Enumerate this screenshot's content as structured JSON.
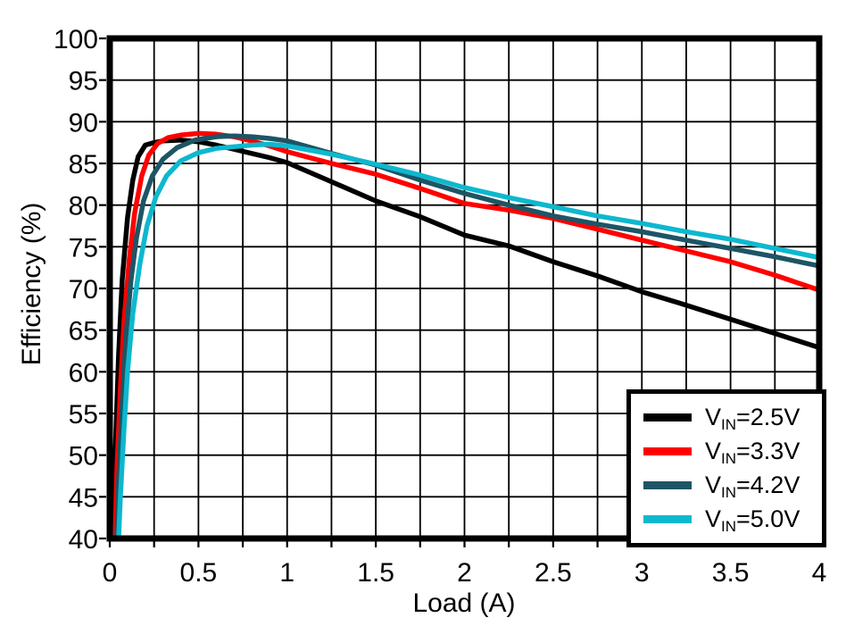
{
  "chart_data": {
    "type": "line",
    "title": "",
    "xlabel": "Load (A)",
    "ylabel": "Efficiency (%)",
    "xlim": [
      0,
      4
    ],
    "ylim": [
      40,
      100
    ],
    "x_tick_values": [
      0,
      0.5,
      1,
      1.5,
      2,
      2.5,
      3,
      3.5,
      4
    ],
    "x_tick_labels": [
      "0",
      "0.5",
      "1",
      "1.5",
      "2",
      "2.5",
      "3",
      "3.5",
      "4"
    ],
    "y_tick_values": [
      40,
      45,
      50,
      55,
      60,
      65,
      70,
      75,
      80,
      85,
      90,
      95,
      100
    ],
    "y_tick_labels": [
      "40",
      "45",
      "50",
      "55",
      "60",
      "65",
      "70",
      "75",
      "80",
      "85",
      "90",
      "95",
      "100"
    ],
    "x_grid_step": 0.25,
    "y_grid_step": 5,
    "grid": true,
    "legend_position": "bottom-right",
    "series": [
      {
        "name": "VIN=2.5V",
        "legend": {
          "pre": "V",
          "sub": "IN",
          "post": "=2.5V"
        },
        "color": "#000000",
        "points": [
          [
            0.02,
            40
          ],
          [
            0.03,
            50
          ],
          [
            0.05,
            62
          ],
          [
            0.07,
            71
          ],
          [
            0.1,
            78.5
          ],
          [
            0.13,
            83
          ],
          [
            0.16,
            85.8
          ],
          [
            0.2,
            87.2
          ],
          [
            0.25,
            87.5
          ],
          [
            0.3,
            87.7
          ],
          [
            0.4,
            87.8
          ],
          [
            0.5,
            87.6
          ],
          [
            0.6,
            87.2
          ],
          [
            0.7,
            86.7
          ],
          [
            0.8,
            86.2
          ],
          [
            0.9,
            85.7
          ],
          [
            1.0,
            85.1
          ],
          [
            1.25,
            82.8
          ],
          [
            1.5,
            80.5
          ],
          [
            1.75,
            78.6
          ],
          [
            2.0,
            76.4
          ],
          [
            2.25,
            75.1
          ],
          [
            2.5,
            73.2
          ],
          [
            2.75,
            71.5
          ],
          [
            3.0,
            69.6
          ],
          [
            3.25,
            68.0
          ],
          [
            3.5,
            66.3
          ],
          [
            3.75,
            64.6
          ],
          [
            4.0,
            62.9
          ]
        ]
      },
      {
        "name": "VIN=3.3V",
        "legend": {
          "pre": "V",
          "sub": "IN",
          "post": "=3.3V"
        },
        "color": "#FF0000",
        "points": [
          [
            0.03,
            40
          ],
          [
            0.04,
            48
          ],
          [
            0.06,
            58
          ],
          [
            0.08,
            66
          ],
          [
            0.11,
            73.5
          ],
          [
            0.14,
            79
          ],
          [
            0.18,
            83.5
          ],
          [
            0.22,
            86
          ],
          [
            0.27,
            87.4
          ],
          [
            0.33,
            88.1
          ],
          [
            0.4,
            88.4
          ],
          [
            0.5,
            88.6
          ],
          [
            0.6,
            88.5
          ],
          [
            0.7,
            88.2
          ],
          [
            0.8,
            87.7
          ],
          [
            0.9,
            87.1
          ],
          [
            1.0,
            86.4
          ],
          [
            1.25,
            85.0
          ],
          [
            1.5,
            83.7
          ],
          [
            1.75,
            82.0
          ],
          [
            2.0,
            80.2
          ],
          [
            2.25,
            79.4
          ],
          [
            2.5,
            78.4
          ],
          [
            2.75,
            77.1
          ],
          [
            3.0,
            75.8
          ],
          [
            3.25,
            74.5
          ],
          [
            3.5,
            73.2
          ],
          [
            3.75,
            71.6
          ],
          [
            4.0,
            69.8
          ]
        ]
      },
      {
        "name": "VIN=4.2V",
        "legend": {
          "pre": "V",
          "sub": "IN",
          "post": "=4.2V"
        },
        "color": "#1D5565",
        "points": [
          [
            0.04,
            40
          ],
          [
            0.05,
            47
          ],
          [
            0.07,
            56
          ],
          [
            0.09,
            64
          ],
          [
            0.12,
            71
          ],
          [
            0.15,
            76
          ],
          [
            0.19,
            80.5
          ],
          [
            0.24,
            83.5
          ],
          [
            0.3,
            85.5
          ],
          [
            0.38,
            86.9
          ],
          [
            0.48,
            87.8
          ],
          [
            0.6,
            88.2
          ],
          [
            0.7,
            88.3
          ],
          [
            0.8,
            88.2
          ],
          [
            0.9,
            88.0
          ],
          [
            1.0,
            87.7
          ],
          [
            1.25,
            86.2
          ],
          [
            1.5,
            84.8
          ],
          [
            1.75,
            83.0
          ],
          [
            2.0,
            81.4
          ],
          [
            2.25,
            80.0
          ],
          [
            2.5,
            78.7
          ],
          [
            2.75,
            77.7
          ],
          [
            3.0,
            76.8
          ],
          [
            3.25,
            75.8
          ],
          [
            3.5,
            74.8
          ],
          [
            3.75,
            73.8
          ],
          [
            4.0,
            72.7
          ]
        ]
      },
      {
        "name": "VIN=5.0V",
        "legend": {
          "pre": "V",
          "sub": "IN",
          "post": "=5.0V"
        },
        "color": "#0DB8CE",
        "points": [
          [
            0.05,
            40
          ],
          [
            0.06,
            45
          ],
          [
            0.08,
            53
          ],
          [
            0.1,
            60
          ],
          [
            0.13,
            67
          ],
          [
            0.17,
            73
          ],
          [
            0.21,
            77.5
          ],
          [
            0.26,
            81
          ],
          [
            0.32,
            83.5
          ],
          [
            0.4,
            85.3
          ],
          [
            0.5,
            86.3
          ],
          [
            0.6,
            86.8
          ],
          [
            0.7,
            87.0
          ],
          [
            0.8,
            87.2
          ],
          [
            0.9,
            87.3
          ],
          [
            1.0,
            87.1
          ],
          [
            1.25,
            86.1
          ],
          [
            1.5,
            84.9
          ],
          [
            1.75,
            83.6
          ],
          [
            2.0,
            82.1
          ],
          [
            2.25,
            80.9
          ],
          [
            2.5,
            79.8
          ],
          [
            2.75,
            78.7
          ],
          [
            3.0,
            77.8
          ],
          [
            3.25,
            76.8
          ],
          [
            3.5,
            75.9
          ],
          [
            3.75,
            74.8
          ],
          [
            4.0,
            73.7
          ]
        ]
      }
    ]
  },
  "colors": {
    "background": "#FFFFFF",
    "axis": "#000000",
    "grid": "#000000",
    "tick_text": "#000000"
  }
}
